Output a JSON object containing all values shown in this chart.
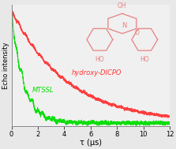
{
  "xlabel": "τ (μs)",
  "ylabel": "Echo intensity",
  "xlim": [
    0,
    12
  ],
  "ylim": [
    -0.03,
    1.05
  ],
  "xticks": [
    0,
    2,
    4,
    6,
    8,
    10,
    12
  ],
  "bg_color": "#e8e8e8",
  "plot_bg_color": "#f0f0f0",
  "mtssl_color": "#00dd00",
  "hydroxy_color": "#ff3333",
  "mol_color": "#e88080",
  "mtssl_label": "MTSSL",
  "hydroxy_label": "hydroxy-DICPO",
  "mtssl_decay": 0.9,
  "hydroxy_decay": 4.2,
  "label_fontsize": 6,
  "tick_fontsize": 6,
  "xlabel_fontsize": 7
}
